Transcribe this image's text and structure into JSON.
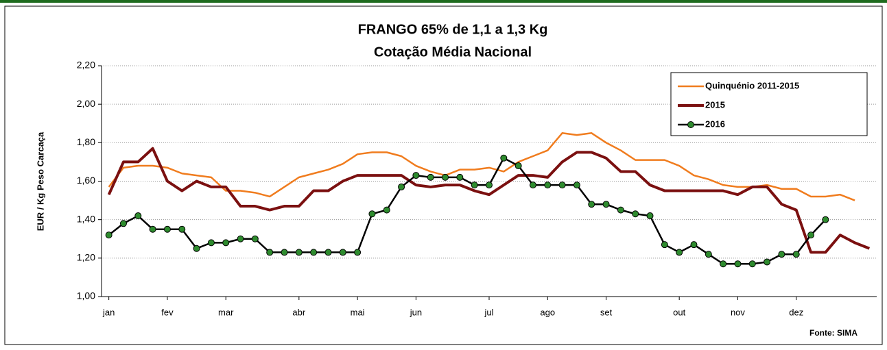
{
  "chart_data": {
    "type": "line",
    "title": [
      "FRANGO 65% de 1,1 a 1,3 Kg",
      "Cotação Média Nacional"
    ],
    "y_label": "EUR / Kg Peso Carcaça",
    "source": "Fonte: SIMA",
    "x": [
      1,
      2,
      3,
      4,
      5,
      6,
      7,
      8,
      9,
      10,
      11,
      12,
      13,
      14,
      15,
      16,
      17,
      18,
      19,
      20,
      21,
      22,
      23,
      24,
      25,
      26,
      27,
      28,
      29,
      30,
      31,
      32,
      33,
      34,
      35,
      36,
      37,
      38,
      39,
      40,
      41,
      42,
      43,
      44,
      45,
      46,
      47,
      48,
      49,
      50,
      51,
      52,
      53
    ],
    "xlim": [
      0.5,
      53.5
    ],
    "xticks": [
      {
        "value": 1,
        "label": "jan"
      },
      {
        "value": 5,
        "label": "fev"
      },
      {
        "value": 9,
        "label": "mar"
      },
      {
        "value": 14,
        "label": "abr"
      },
      {
        "value": 18,
        "label": "mai"
      },
      {
        "value": 22,
        "label": "jun"
      },
      {
        "value": 27,
        "label": "jul"
      },
      {
        "value": 31,
        "label": "ago"
      },
      {
        "value": 35,
        "label": "set"
      },
      {
        "value": 40,
        "label": "out"
      },
      {
        "value": 44,
        "label": "nov"
      },
      {
        "value": 48,
        "label": "dez"
      }
    ],
    "ylim": [
      1.0,
      2.2
    ],
    "yticks": [
      {
        "value": 1.0,
        "label": "1,00"
      },
      {
        "value": 1.2,
        "label": "1,20"
      },
      {
        "value": 1.4,
        "label": "1,40"
      },
      {
        "value": 1.6,
        "label": "1,60"
      },
      {
        "value": 1.8,
        "label": "1,80"
      },
      {
        "value": 2.0,
        "label": "2,00"
      },
      {
        "value": 2.2,
        "label": "2,20"
      }
    ],
    "grid": true,
    "legend": "top-right",
    "series": [
      {
        "name": "Quinquénio 2011-2015",
        "color": "#f07c1e",
        "width": 2.5,
        "markers": false,
        "values": [
          1.57,
          1.67,
          1.68,
          1.68,
          1.67,
          1.64,
          1.63,
          1.62,
          1.55,
          1.55,
          1.54,
          1.52,
          1.57,
          1.62,
          1.64,
          1.66,
          1.69,
          1.74,
          1.75,
          1.75,
          1.73,
          1.68,
          1.65,
          1.63,
          1.66,
          1.66,
          1.67,
          1.65,
          1.7,
          1.73,
          1.76,
          1.85,
          1.84,
          1.85,
          1.8,
          1.76,
          1.71,
          1.71,
          1.71,
          1.68,
          1.63,
          1.61,
          1.58,
          1.57,
          1.57,
          1.58,
          1.56,
          1.56,
          1.52,
          1.52,
          1.53,
          1.5,
          null
        ]
      },
      {
        "name": "2015",
        "color": "#7b1010",
        "width": 4,
        "markers": false,
        "values": [
          1.53,
          1.7,
          1.7,
          1.77,
          1.6,
          1.55,
          1.6,
          1.57,
          1.57,
          1.47,
          1.47,
          1.45,
          1.47,
          1.47,
          1.55,
          1.55,
          1.6,
          1.63,
          1.63,
          1.63,
          1.63,
          1.58,
          1.57,
          1.58,
          1.58,
          1.55,
          1.53,
          1.58,
          1.63,
          1.63,
          1.62,
          1.7,
          1.75,
          1.75,
          1.72,
          1.65,
          1.65,
          1.58,
          1.55,
          1.55,
          1.55,
          1.55,
          1.55,
          1.53,
          1.57,
          1.57,
          1.48,
          1.45,
          1.23,
          1.23,
          1.32,
          1.28,
          1.25
        ]
      },
      {
        "name": "2016",
        "color": "#000000",
        "marker_color": "#2e8b2e",
        "width": 2.5,
        "markers": true,
        "values": [
          1.32,
          1.38,
          1.42,
          1.35,
          1.35,
          1.35,
          1.25,
          1.28,
          1.28,
          1.3,
          1.3,
          1.23,
          1.23,
          1.23,
          1.23,
          1.23,
          1.23,
          1.23,
          1.43,
          1.45,
          1.57,
          1.63,
          1.62,
          1.62,
          1.62,
          1.58,
          1.58,
          1.72,
          1.68,
          1.58,
          1.58,
          1.58,
          1.58,
          1.48,
          1.48,
          1.45,
          1.43,
          1.42,
          1.27,
          1.23,
          1.27,
          1.22,
          1.17,
          1.17,
          1.17,
          1.18,
          1.22,
          1.22,
          1.32,
          1.4,
          null,
          null,
          null
        ]
      }
    ]
  }
}
